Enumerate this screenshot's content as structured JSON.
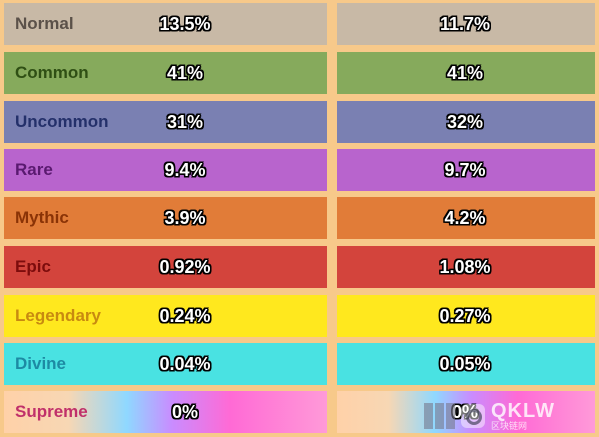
{
  "rows": [
    {
      "rarity": "Normal",
      "col1": "13.5%",
      "col2": "11.7%",
      "bg": "#c8b9a6",
      "text_color": "#5b5149"
    },
    {
      "rarity": "Common",
      "col1": "41%",
      "col2": "41%",
      "bg": "#86aa5c",
      "text_color": "#2f4f14"
    },
    {
      "rarity": "Uncommon",
      "col1": "31%",
      "col2": "32%",
      "bg": "#7a80b2",
      "text_color": "#24306a"
    },
    {
      "rarity": "Rare",
      "col1": "9.4%",
      "col2": "9.7%",
      "bg": "#b864cd",
      "text_color": "#5a1a70"
    },
    {
      "rarity": "Mythic",
      "col1": "3.9%",
      "col2": "4.2%",
      "bg": "#e17c38",
      "text_color": "#8a3306"
    },
    {
      "rarity": "Epic",
      "col1": "0.92%",
      "col2": "1.08%",
      "bg": "#d3443c",
      "text_color": "#7d0c0c"
    },
    {
      "rarity": "Legendary",
      "col1": "0.24%",
      "col2": "0.27%",
      "bg": "#ffe81e",
      "text_color": "#c88a10"
    },
    {
      "rarity": "Divine",
      "col1": "0.04%",
      "col2": "0.05%",
      "bg": "#49e2e2",
      "text_color": "#1d8aa3"
    },
    {
      "rarity": "Supreme",
      "col1": "0%",
      "col2": "0%",
      "bg": "linear-gradient(90deg, #ffd1a8 0%, #f7d7b4 20%, #8fd8ff 38%, #c98cff 52%, #ff6ad5 70%, #ff9ad8 100%)",
      "text_color": "#c0306a"
    }
  ],
  "watermark": {
    "brand": "QKLW",
    "sub": "区块链网"
  }
}
